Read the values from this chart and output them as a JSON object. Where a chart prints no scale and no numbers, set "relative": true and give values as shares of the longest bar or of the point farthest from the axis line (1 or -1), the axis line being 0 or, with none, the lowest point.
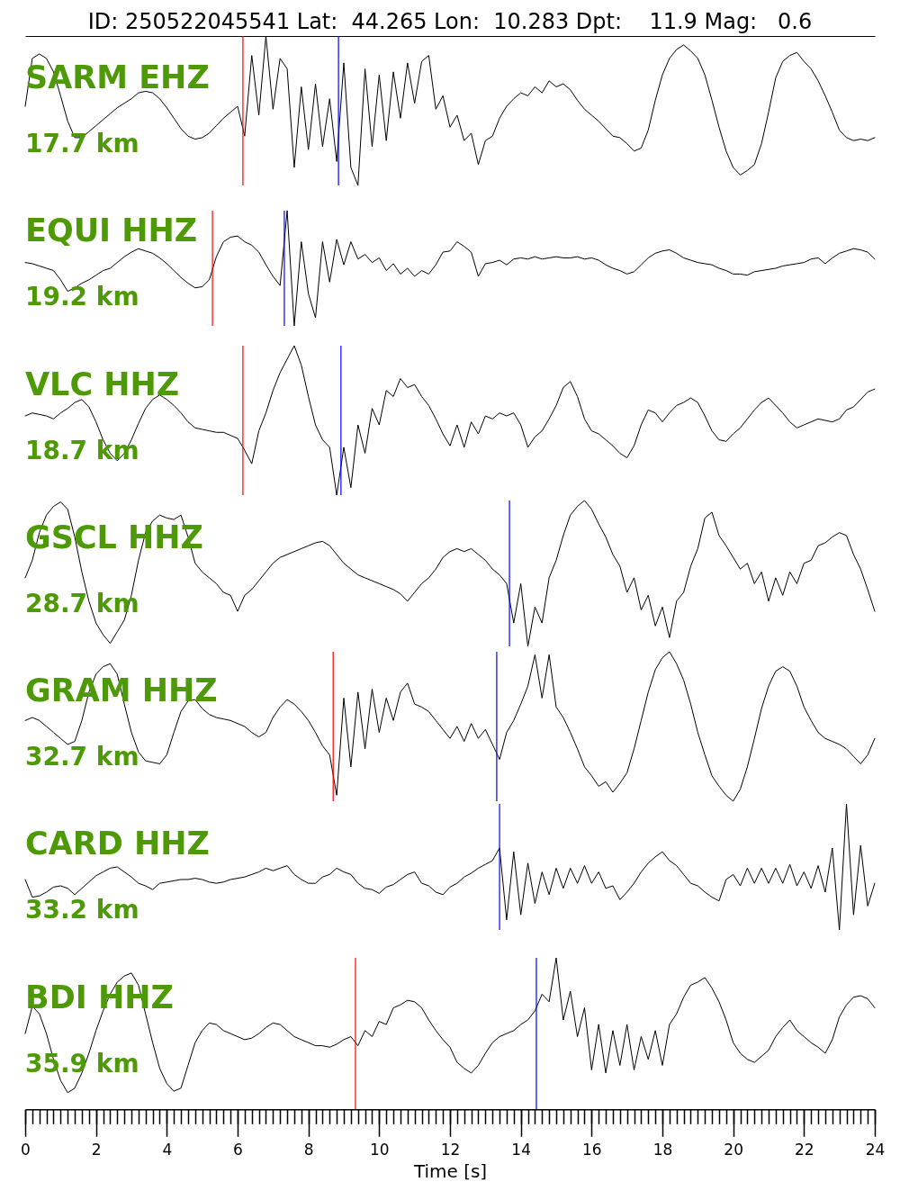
{
  "chart_data": [
    {
      "type": "line",
      "title": "ID: 250522045541 Lat:  44.265 Lon:  10.283 Dpt:    11.9 Mag:   0.6",
      "relative": true,
      "xlim": [
        0,
        24
      ],
      "tick_labels": false,
      "annotations": [
        "SARM EHZ",
        "17.7 km"
      ],
      "ref_lines": [
        {
          "axis": "x",
          "value": 6.15,
          "color": "#ff0000"
        },
        {
          "axis": "x",
          "value": 8.85,
          "color": "#0000ff"
        }
      ],
      "x": [
        0,
        0.2,
        0.4,
        0.6,
        0.8,
        1,
        1.2,
        1.4,
        1.6,
        1.8,
        2,
        2.2,
        2.4,
        2.6,
        2.8,
        3,
        3.2,
        3.4,
        3.6,
        3.8,
        4,
        4.2,
        4.4,
        4.6,
        4.8,
        5,
        5.2,
        5.4,
        5.6,
        5.8,
        6,
        6.2,
        6.4,
        6.6,
        6.8,
        7,
        7.2,
        7.4,
        7.6,
        7.8,
        8,
        8.2,
        8.4,
        8.6,
        8.8,
        9,
        9.2,
        9.4,
        9.6,
        9.8,
        10,
        10.2,
        10.4,
        10.6,
        10.8,
        11,
        11.2,
        11.4,
        11.6,
        11.8,
        12,
        12.2,
        12.4,
        12.6,
        12.8,
        13,
        13.2,
        13.4,
        13.6,
        13.8,
        14,
        14.2,
        14.4,
        14.6,
        14.8,
        15,
        15.2,
        15.4,
        15.6,
        15.8,
        16,
        16.2,
        16.4,
        16.6,
        16.8,
        17,
        17.2,
        17.4,
        17.6,
        17.8,
        18,
        18.2,
        18.4,
        18.6,
        18.8,
        19,
        19.2,
        19.4,
        19.6,
        19.8,
        20,
        20.2,
        20.4,
        20.6,
        20.8,
        21,
        21.2,
        21.4,
        21.6,
        21.8,
        22,
        22.2,
        22.4,
        22.6,
        22.8,
        23,
        23.2,
        23.4,
        23.6,
        23.8,
        24
      ],
      "series": [
        {
          "color": "#000000",
          "values": [
            0.53,
            0.85,
            0.88,
            0.85,
            0.76,
            0.6,
            0.43,
            0.32,
            0.32,
            0.36,
            0.4,
            0.44,
            0.48,
            0.52,
            0.55,
            0.58,
            0.62,
            0.63,
            0.62,
            0.58,
            0.52,
            0.45,
            0.38,
            0.33,
            0.31,
            0.32,
            0.35,
            0.4,
            0.45,
            0.49,
            0.53,
            0.33,
            0.87,
            0.47,
            1,
            0.51,
            0.85,
            0.78,
            0.12,
            0.66,
            0.24,
            0.68,
            0.26,
            0.58,
            0.16,
            0.82,
            0.12,
            0,
            0.78,
            0.26,
            0.74,
            0.3,
            0.76,
            0.45,
            0.82,
            0.55,
            0.83,
            0.87,
            0.51,
            0.6,
            0.39,
            0.47,
            0.3,
            0.35,
            0.14,
            0.3,
            0.33,
            0.45,
            0.53,
            0.58,
            0.62,
            0.6,
            0.66,
            0.62,
            0.7,
            0.66,
            0.68,
            0.64,
            0.57,
            0.51,
            0.47,
            0.43,
            0.38,
            0.33,
            0.32,
            0.28,
            0.23,
            0.25,
            0.37,
            0.57,
            0.74,
            0.85,
            0.91,
            0.94,
            0.9,
            0.85,
            0.74,
            0.57,
            0.39,
            0.23,
            0.12,
            0.07,
            0.1,
            0.14,
            0.28,
            0.49,
            0.72,
            0.83,
            0.87,
            0.89,
            0.83,
            0.78,
            0.7,
            0.6,
            0.49,
            0.37,
            0.32,
            0.3,
            0.31,
            0.3,
            0.32
          ]
        }
      ]
    },
    {
      "type": "line",
      "relative": true,
      "xlim": [
        0,
        24
      ],
      "tick_labels": false,
      "annotations": [
        "EQUI HHZ",
        "19.2 km"
      ],
      "ref_lines": [
        {
          "axis": "x",
          "value": 5.29,
          "color": "#ff0000"
        },
        {
          "axis": "x",
          "value": 7.32,
          "color": "#0000ff"
        }
      ],
      "x": [
        0,
        0.2,
        0.4,
        0.6,
        0.8,
        1,
        1.2,
        1.4,
        1.6,
        1.8,
        2,
        2.2,
        2.4,
        2.6,
        2.8,
        3,
        3.2,
        3.4,
        3.6,
        3.8,
        4,
        4.2,
        4.4,
        4.6,
        4.8,
        5,
        5.2,
        5.4,
        5.6,
        5.8,
        6,
        6.2,
        6.4,
        6.6,
        6.8,
        7,
        7.2,
        7.4,
        7.6,
        7.8,
        8,
        8.2,
        8.4,
        8.6,
        8.8,
        9,
        9.2,
        9.4,
        9.6,
        9.8,
        10,
        10.2,
        10.4,
        10.6,
        10.8,
        11,
        11.2,
        11.4,
        11.6,
        11.8,
        12,
        12.2,
        12.4,
        12.6,
        12.8,
        13,
        13.2,
        13.4,
        13.6,
        13.8,
        14,
        14.2,
        14.4,
        14.6,
        14.8,
        15,
        15.2,
        15.4,
        15.6,
        15.8,
        16,
        16.2,
        16.4,
        16.6,
        16.8,
        17,
        17.2,
        17.4,
        17.6,
        17.8,
        18,
        18.2,
        18.4,
        18.6,
        18.8,
        19,
        19.2,
        19.4,
        19.6,
        19.8,
        20,
        20.2,
        20.4,
        20.6,
        20.8,
        21,
        21.2,
        21.4,
        21.6,
        21.8,
        22,
        22.2,
        22.4,
        22.6,
        22.8,
        23,
        23.2,
        23.4,
        23.6,
        23.8,
        24
      ],
      "series": [
        {
          "color": "#000000",
          "values": [
            0.55,
            0.54,
            0.52,
            0.5,
            0.48,
            0.4,
            0.3,
            0.33,
            0.37,
            0.4,
            0.44,
            0.48,
            0.5,
            0.55,
            0.6,
            0.64,
            0.67,
            0.65,
            0.63,
            0.59,
            0.54,
            0.48,
            0.42,
            0.37,
            0.33,
            0.34,
            0.4,
            0.6,
            0.73,
            0.77,
            0.78,
            0.73,
            0.7,
            0.64,
            0.53,
            0.43,
            0.35,
            1,
            0,
            0.73,
            0.28,
            0.07,
            0.73,
            0.38,
            0.75,
            0.53,
            0.73,
            0.58,
            0.62,
            0.55,
            0.59,
            0.48,
            0.54,
            0.45,
            0.5,
            0.43,
            0.48,
            0.45,
            0.53,
            0.64,
            0.65,
            0.73,
            0.69,
            0.64,
            0.43,
            0.54,
            0.55,
            0.57,
            0.53,
            0.58,
            0.59,
            0.58,
            0.6,
            0.58,
            0.59,
            0.6,
            0.59,
            0.59,
            0.6,
            0.58,
            0.59,
            0.57,
            0.53,
            0.5,
            0.48,
            0.45,
            0.47,
            0.53,
            0.59,
            0.63,
            0.65,
            0.66,
            0.63,
            0.59,
            0.57,
            0.55,
            0.54,
            0.53,
            0.5,
            0.48,
            0.45,
            0.45,
            0.44,
            0.47,
            0.48,
            0.49,
            0.5,
            0.52,
            0.53,
            0.54,
            0.55,
            0.58,
            0.59,
            0.54,
            0.59,
            0.63,
            0.65,
            0.67,
            0.66,
            0.64,
            0.58
          ]
        }
      ]
    },
    {
      "type": "line",
      "relative": true,
      "xlim": [
        0,
        24
      ],
      "tick_labels": false,
      "annotations": [
        "VLC HHZ",
        "18.7 km"
      ],
      "ref_lines": [
        {
          "axis": "x",
          "value": 6.15,
          "color": "#ff0000"
        },
        {
          "axis": "x",
          "value": 8.92,
          "color": "#0000ff"
        }
      ],
      "x": [
        0,
        0.2,
        0.4,
        0.6,
        0.8,
        1,
        1.2,
        1.4,
        1.6,
        1.8,
        2,
        2.2,
        2.4,
        2.6,
        2.8,
        3,
        3.2,
        3.4,
        3.6,
        3.8,
        4,
        4.2,
        4.4,
        4.6,
        4.8,
        5,
        5.2,
        5.4,
        5.6,
        5.8,
        6,
        6.2,
        6.4,
        6.6,
        6.8,
        7,
        7.2,
        7.4,
        7.6,
        7.8,
        8,
        8.2,
        8.4,
        8.6,
        8.8,
        9,
        9.2,
        9.4,
        9.6,
        9.8,
        10,
        10.2,
        10.4,
        10.6,
        10.8,
        11,
        11.2,
        11.4,
        11.6,
        11.8,
        12,
        12.2,
        12.4,
        12.6,
        12.8,
        13,
        13.2,
        13.4,
        13.6,
        13.8,
        14,
        14.2,
        14.4,
        14.6,
        14.8,
        15,
        15.2,
        15.4,
        15.6,
        15.8,
        16,
        16.2,
        16.4,
        16.6,
        16.8,
        17,
        17.2,
        17.4,
        17.6,
        17.8,
        18,
        18.2,
        18.4,
        18.6,
        18.8,
        19,
        19.2,
        19.4,
        19.6,
        19.8,
        20,
        20.2,
        20.4,
        20.6,
        20.8,
        21,
        21.2,
        21.4,
        21.6,
        21.8,
        22,
        22.2,
        22.4,
        22.6,
        22.8,
        23,
        23.2,
        23.4,
        23.6,
        23.8,
        24
      ],
      "series": [
        {
          "color": "#000000",
          "values": [
            0.53,
            0.55,
            0.54,
            0.53,
            0.51,
            0.55,
            0.58,
            0.62,
            0.64,
            0.59,
            0.49,
            0.37,
            0.28,
            0.23,
            0.28,
            0.37,
            0.48,
            0.58,
            0.64,
            0.67,
            0.64,
            0.6,
            0.55,
            0.49,
            0.45,
            0.44,
            0.43,
            0.42,
            0.42,
            0.4,
            0.38,
            0.3,
            0.21,
            0.43,
            0.55,
            0.7,
            0.82,
            0.91,
            1,
            0.87,
            0.66,
            0.47,
            0.37,
            0.32,
            0,
            0.32,
            0.05,
            0.47,
            0.28,
            0.58,
            0.47,
            0.7,
            0.66,
            0.78,
            0.72,
            0.74,
            0.66,
            0.6,
            0.51,
            0.41,
            0.33,
            0.47,
            0.32,
            0.49,
            0.41,
            0.53,
            0.51,
            0.55,
            0.53,
            0.55,
            0.47,
            0.32,
            0.39,
            0.43,
            0.51,
            0.6,
            0.72,
            0.76,
            0.66,
            0.51,
            0.43,
            0.41,
            0.37,
            0.33,
            0.28,
            0.25,
            0.33,
            0.47,
            0.57,
            0.55,
            0.49,
            0.55,
            0.6,
            0.62,
            0.65,
            0.62,
            0.53,
            0.43,
            0.37,
            0.36,
            0.41,
            0.45,
            0.51,
            0.57,
            0.62,
            0.65,
            0.6,
            0.55,
            0.49,
            0.45,
            0.47,
            0.49,
            0.51,
            0.5,
            0.49,
            0.51,
            0.57,
            0.59,
            0.64,
            0.69,
            0.71
          ]
        }
      ]
    },
    {
      "type": "line",
      "relative": true,
      "xlim": [
        0,
        24
      ],
      "tick_labels": false,
      "annotations": [
        "GSCL HHZ",
        "28.7 km"
      ],
      "ref_lines": [
        {
          "axis": "x",
          "value": 13.68,
          "color": "#0000ff"
        }
      ],
      "x": [
        0,
        0.2,
        0.4,
        0.6,
        0.8,
        1,
        1.2,
        1.4,
        1.6,
        1.8,
        2,
        2.2,
        2.4,
        2.6,
        2.8,
        3,
        3.2,
        3.4,
        3.6,
        3.8,
        4,
        4.2,
        4.4,
        4.6,
        4.8,
        5,
        5.2,
        5.4,
        5.6,
        5.8,
        6,
        6.2,
        6.4,
        6.6,
        6.8,
        7,
        7.2,
        7.4,
        7.6,
        7.8,
        8,
        8.2,
        8.4,
        8.6,
        8.8,
        9,
        9.2,
        9.4,
        9.6,
        9.8,
        10,
        10.2,
        10.4,
        10.6,
        10.8,
        11,
        11.2,
        11.4,
        11.6,
        11.8,
        12,
        12.2,
        12.4,
        12.6,
        12.8,
        13,
        13.2,
        13.4,
        13.6,
        13.8,
        14,
        14.2,
        14.4,
        14.6,
        14.8,
        15,
        15.2,
        15.4,
        15.6,
        15.8,
        16,
        16.2,
        16.4,
        16.6,
        16.8,
        17,
        17.2,
        17.4,
        17.6,
        17.8,
        18,
        18.2,
        18.4,
        18.6,
        18.8,
        19,
        19.2,
        19.4,
        19.6,
        19.8,
        20,
        20.2,
        20.4,
        20.6,
        20.8,
        21,
        21.2,
        21.4,
        21.6,
        21.8,
        22,
        22.2,
        22.4,
        22.6,
        22.8,
        23,
        23.2,
        23.4,
        23.6,
        23.8,
        24
      ],
      "series": [
        {
          "color": "#000000",
          "values": [
            0.47,
            0.59,
            0.78,
            0.9,
            0.96,
            0.99,
            0.94,
            0.75,
            0.51,
            0.31,
            0.16,
            0.08,
            0.02,
            0.1,
            0.18,
            0.35,
            0.59,
            0.78,
            0.86,
            0.9,
            0.88,
            0.87,
            0.9,
            0.75,
            0.57,
            0.51,
            0.47,
            0.43,
            0.37,
            0.35,
            0.24,
            0.35,
            0.39,
            0.45,
            0.51,
            0.57,
            0.61,
            0.63,
            0.65,
            0.67,
            0.69,
            0.71,
            0.72,
            0.69,
            0.63,
            0.57,
            0.53,
            0.49,
            0.47,
            0.45,
            0.43,
            0.41,
            0.39,
            0.36,
            0.31,
            0.37,
            0.43,
            0.47,
            0.53,
            0.61,
            0.65,
            0.67,
            0.65,
            0.67,
            0.63,
            0.59,
            0.53,
            0.49,
            0.43,
            0.16,
            0.43,
            0,
            0.27,
            0.16,
            0.47,
            0.59,
            0.76,
            0.9,
            0.96,
            1,
            0.94,
            0.84,
            0.75,
            0.63,
            0.55,
            0.37,
            0.47,
            0.25,
            0.35,
            0.14,
            0.27,
            0.06,
            0.31,
            0.37,
            0.55,
            0.67,
            0.88,
            0.92,
            0.76,
            0.69,
            0.61,
            0.53,
            0.57,
            0.43,
            0.51,
            0.31,
            0.47,
            0.35,
            0.51,
            0.43,
            0.57,
            0.59,
            0.69,
            0.71,
            0.75,
            0.78,
            0.76,
            0.63,
            0.53,
            0.39,
            0.24
          ]
        }
      ]
    },
    {
      "type": "line",
      "relative": true,
      "xlim": [
        0,
        24
      ],
      "tick_labels": false,
      "annotations": [
        "GRAM HHZ",
        "32.7 km"
      ],
      "ref_lines": [
        {
          "axis": "x",
          "value": 8.7,
          "color": "#ff0000"
        },
        {
          "axis": "x",
          "value": 13.32,
          "color": "#0000ff"
        }
      ],
      "x": [
        0,
        0.2,
        0.4,
        0.6,
        0.8,
        1,
        1.2,
        1.4,
        1.6,
        1.8,
        2,
        2.2,
        2.4,
        2.6,
        2.8,
        3,
        3.2,
        3.4,
        3.6,
        3.8,
        4,
        4.2,
        4.4,
        4.6,
        4.8,
        5,
        5.2,
        5.4,
        5.6,
        5.8,
        6,
        6.2,
        6.4,
        6.6,
        6.8,
        7,
        7.2,
        7.4,
        7.6,
        7.8,
        8,
        8.2,
        8.4,
        8.6,
        8.8,
        9,
        9.2,
        9.4,
        9.6,
        9.8,
        10,
        10.2,
        10.4,
        10.6,
        10.8,
        11,
        11.2,
        11.4,
        11.6,
        11.8,
        12,
        12.2,
        12.4,
        12.6,
        12.8,
        13,
        13.2,
        13.4,
        13.6,
        13.8,
        14,
        14.2,
        14.4,
        14.6,
        14.8,
        15,
        15.2,
        15.4,
        15.6,
        15.8,
        16,
        16.2,
        16.4,
        16.6,
        16.8,
        17,
        17.2,
        17.4,
        17.6,
        17.8,
        18,
        18.2,
        18.4,
        18.6,
        18.8,
        19,
        19.2,
        19.4,
        19.6,
        19.8,
        20,
        20.2,
        20.4,
        20.6,
        20.8,
        21,
        21.2,
        21.4,
        21.6,
        21.8,
        22,
        22.2,
        22.4,
        22.6,
        22.8,
        23,
        23.2,
        23.4,
        23.6,
        23.8,
        24
      ],
      "series": [
        {
          "color": "#000000",
          "values": [
            0.54,
            0.56,
            0.54,
            0.5,
            0.46,
            0.42,
            0.38,
            0.4,
            0.54,
            0.73,
            0.85,
            0.9,
            0.92,
            0.85,
            0.65,
            0.46,
            0.33,
            0.27,
            0.26,
            0.25,
            0.31,
            0.46,
            0.6,
            0.67,
            0.68,
            0.62,
            0.58,
            0.56,
            0.55,
            0.54,
            0.52,
            0.5,
            0.46,
            0.43,
            0.46,
            0.56,
            0.63,
            0.68,
            0.65,
            0.6,
            0.54,
            0.46,
            0.37,
            0.31,
            0.04,
            0.69,
            0.23,
            0.73,
            0.35,
            0.75,
            0.46,
            0.69,
            0.54,
            0.73,
            0.79,
            0.65,
            0.63,
            0.6,
            0.54,
            0.48,
            0.42,
            0.5,
            0.4,
            0.52,
            0.42,
            0.48,
            0.38,
            0.28,
            0.46,
            0.54,
            0.65,
            0.77,
            0.98,
            0.69,
            0.98,
            0.63,
            0.56,
            0.46,
            0.35,
            0.23,
            0.17,
            0.1,
            0.13,
            0.06,
            0.12,
            0.19,
            0.35,
            0.54,
            0.73,
            0.88,
            0.96,
            1,
            0.92,
            0.81,
            0.65,
            0.46,
            0.31,
            0.17,
            0.1,
            0.04,
            0,
            0.08,
            0.23,
            0.42,
            0.62,
            0.77,
            0.87,
            0.9,
            0.87,
            0.77,
            0.63,
            0.54,
            0.46,
            0.42,
            0.4,
            0.38,
            0.35,
            0.3,
            0.25,
            0.31,
            0.42
          ]
        }
      ]
    },
    {
      "type": "line",
      "relative": true,
      "xlim": [
        0,
        24
      ],
      "tick_labels": false,
      "annotations": [
        "CARD HHZ",
        "33.2 km"
      ],
      "ref_lines": [
        {
          "axis": "x",
          "value": 13.4,
          "color": "#0000ff"
        }
      ],
      "x": [
        0,
        0.2,
        0.4,
        0.6,
        0.8,
        1,
        1.2,
        1.4,
        1.6,
        1.8,
        2,
        2.2,
        2.4,
        2.6,
        2.8,
        3,
        3.2,
        3.4,
        3.6,
        3.8,
        4,
        4.2,
        4.4,
        4.6,
        4.8,
        5,
        5.2,
        5.4,
        5.6,
        5.8,
        6,
        6.2,
        6.4,
        6.6,
        6.8,
        7,
        7.2,
        7.4,
        7.6,
        7.8,
        8,
        8.2,
        8.4,
        8.6,
        8.8,
        9,
        9.2,
        9.4,
        9.6,
        9.8,
        10,
        10.2,
        10.4,
        10.6,
        10.8,
        11,
        11.2,
        11.4,
        11.6,
        11.8,
        12,
        12.2,
        12.4,
        12.6,
        12.8,
        13,
        13.2,
        13.4,
        13.6,
        13.8,
        14,
        14.2,
        14.4,
        14.6,
        14.8,
        15,
        15.2,
        15.4,
        15.6,
        15.8,
        16,
        16.2,
        16.4,
        16.6,
        16.8,
        17,
        17.2,
        17.4,
        17.6,
        17.8,
        18,
        18.2,
        18.4,
        18.6,
        18.8,
        19,
        19.2,
        19.4,
        19.6,
        19.8,
        20,
        20.2,
        20.4,
        20.6,
        20.8,
        21,
        21.2,
        21.4,
        21.6,
        21.8,
        22,
        22.2,
        22.4,
        22.6,
        22.8,
        23,
        23.2,
        23.4,
        23.6,
        23.8,
        24
      ],
      "series": [
        {
          "color": "#000000",
          "values": [
            0.4,
            0.26,
            0.27,
            0.3,
            0.34,
            0.35,
            0.33,
            0.28,
            0.33,
            0.38,
            0.43,
            0.46,
            0.49,
            0.5,
            0.46,
            0.42,
            0.37,
            0.35,
            0.32,
            0.37,
            0.38,
            0.39,
            0.4,
            0.4,
            0.41,
            0.4,
            0.38,
            0.37,
            0.38,
            0.4,
            0.41,
            0.42,
            0.44,
            0.46,
            0.49,
            0.47,
            0.49,
            0.51,
            0.44,
            0.4,
            0.37,
            0.37,
            0.42,
            0.44,
            0.49,
            0.46,
            0.44,
            0.37,
            0.33,
            0.32,
            0.29,
            0.34,
            0.36,
            0.4,
            0.44,
            0.46,
            0.37,
            0.35,
            0.3,
            0.28,
            0.34,
            0.37,
            0.42,
            0.45,
            0.49,
            0.52,
            0.55,
            0.65,
            0.08,
            0.62,
            0.12,
            0.53,
            0.21,
            0.46,
            0.28,
            0.49,
            0.33,
            0.49,
            0.37,
            0.51,
            0.37,
            0.46,
            0.33,
            0.35,
            0.24,
            0.3,
            0.37,
            0.46,
            0.53,
            0.58,
            0.62,
            0.55,
            0.51,
            0.44,
            0.37,
            0.35,
            0.3,
            0.26,
            0.23,
            0.4,
            0.44,
            0.35,
            0.49,
            0.37,
            0.49,
            0.37,
            0.49,
            0.37,
            0.52,
            0.35,
            0.46,
            0.33,
            0.51,
            0.3,
            0.65,
            0,
            1,
            0.12,
            0.67,
            0.19,
            0.37
          ]
        }
      ]
    },
    {
      "type": "line",
      "relative": true,
      "xlim": [
        0,
        24
      ],
      "tick_labels": "x",
      "xlabel": "Time [s]",
      "annotations": [
        "BDI HHZ",
        "35.9 km"
      ],
      "ref_lines": [
        {
          "axis": "x",
          "value": 9.33,
          "color": "#ff0000"
        },
        {
          "axis": "x",
          "value": 14.44,
          "color": "#0000ff"
        }
      ],
      "xticks": [
        0,
        {
          "value": 0.2,
          "label": null
        },
        {
          "value": 0.4,
          "label": null
        },
        {
          "value": 0.6,
          "label": null
        },
        {
          "value": 0.8,
          "label": null
        },
        {
          "value": 1,
          "label": null
        },
        {
          "value": 1.2,
          "label": null
        },
        {
          "value": 1.4,
          "label": null
        },
        {
          "value": 1.6,
          "label": null
        },
        {
          "value": 1.8,
          "label": null
        },
        2,
        {
          "value": 2.2,
          "label": null
        },
        {
          "value": 2.4,
          "label": null
        },
        {
          "value": 2.6,
          "label": null
        },
        {
          "value": 2.8,
          "label": null
        },
        {
          "value": 3,
          "label": null
        },
        {
          "value": 3.2,
          "label": null
        },
        {
          "value": 3.4,
          "label": null
        },
        {
          "value": 3.6,
          "label": null
        },
        {
          "value": 3.8,
          "label": null
        },
        4,
        {
          "value": 4.2,
          "label": null
        },
        {
          "value": 4.4,
          "label": null
        },
        {
          "value": 4.6,
          "label": null
        },
        {
          "value": 4.8,
          "label": null
        },
        {
          "value": 5,
          "label": null
        },
        {
          "value": 5.2,
          "label": null
        },
        {
          "value": 5.4,
          "label": null
        },
        {
          "value": 5.6,
          "label": null
        },
        {
          "value": 5.8,
          "label": null
        },
        6,
        {
          "value": 6.2,
          "label": null
        },
        {
          "value": 6.4,
          "label": null
        },
        {
          "value": 6.6,
          "label": null
        },
        {
          "value": 6.8,
          "label": null
        },
        {
          "value": 7,
          "label": null
        },
        {
          "value": 7.2,
          "label": null
        },
        {
          "value": 7.4,
          "label": null
        },
        {
          "value": 7.6,
          "label": null
        },
        {
          "value": 7.8,
          "label": null
        },
        8,
        {
          "value": 8.2,
          "label": null
        },
        {
          "value": 8.4,
          "label": null
        },
        {
          "value": 8.6,
          "label": null
        },
        {
          "value": 8.8,
          "label": null
        },
        {
          "value": 9,
          "label": null
        },
        {
          "value": 9.2,
          "label": null
        },
        {
          "value": 9.4,
          "label": null
        },
        {
          "value": 9.6,
          "label": null
        },
        {
          "value": 9.8,
          "label": null
        },
        10,
        {
          "value": 10.2,
          "label": null
        },
        {
          "value": 10.4,
          "label": null
        },
        {
          "value": 10.6,
          "label": null
        },
        {
          "value": 10.8,
          "label": null
        },
        {
          "value": 11,
          "label": null
        },
        {
          "value": 11.2,
          "label": null
        },
        {
          "value": 11.4,
          "label": null
        },
        {
          "value": 11.6,
          "label": null
        },
        {
          "value": 11.8,
          "label": null
        },
        12,
        {
          "value": 12.2,
          "label": null
        },
        {
          "value": 12.4,
          "label": null
        },
        {
          "value": 12.6,
          "label": null
        },
        {
          "value": 12.8,
          "label": null
        },
        {
          "value": 13,
          "label": null
        },
        {
          "value": 13.2,
          "label": null
        },
        {
          "value": 13.4,
          "label": null
        },
        {
          "value": 13.6,
          "label": null
        },
        {
          "value": 13.8,
          "label": null
        },
        14,
        {
          "value": 14.2,
          "label": null
        },
        {
          "value": 14.4,
          "label": null
        },
        {
          "value": 14.6,
          "label": null
        },
        {
          "value": 14.8,
          "label": null
        },
        {
          "value": 15,
          "label": null
        },
        {
          "value": 15.2,
          "label": null
        },
        {
          "value": 15.4,
          "label": null
        },
        {
          "value": 15.6,
          "label": null
        },
        {
          "value": 15.8,
          "label": null
        },
        16,
        {
          "value": 16.2,
          "label": null
        },
        {
          "value": 16.4,
          "label": null
        },
        {
          "value": 16.6,
          "label": null
        },
        {
          "value": 16.8,
          "label": null
        },
        {
          "value": 17,
          "label": null
        },
        {
          "value": 17.2,
          "label": null
        },
        {
          "value": 17.4,
          "label": null
        },
        {
          "value": 17.6,
          "label": null
        },
        {
          "value": 17.8,
          "label": null
        },
        18,
        {
          "value": 18.2,
          "label": null
        },
        {
          "value": 18.4,
          "label": null
        },
        {
          "value": 18.6,
          "label": null
        },
        {
          "value": 18.8,
          "label": null
        },
        {
          "value": 19,
          "label": null
        },
        {
          "value": 19.2,
          "label": null
        },
        {
          "value": 19.4,
          "label": null
        },
        {
          "value": 19.6,
          "label": null
        },
        {
          "value": 19.8,
          "label": null
        },
        20,
        {
          "value": 20.2,
          "label": null
        },
        {
          "value": 20.4,
          "label": null
        },
        {
          "value": 20.6,
          "label": null
        },
        {
          "value": 20.8,
          "label": null
        },
        {
          "value": 21,
          "label": null
        },
        {
          "value": 21.2,
          "label": null
        },
        {
          "value": 21.4,
          "label": null
        },
        {
          "value": 21.6,
          "label": null
        },
        {
          "value": 21.8,
          "label": null
        },
        22,
        {
          "value": 22.2,
          "label": null
        },
        {
          "value": 22.4,
          "label": null
        },
        {
          "value": 22.6,
          "label": null
        },
        {
          "value": 22.8,
          "label": null
        },
        {
          "value": 23,
          "label": null
        },
        {
          "value": 23.2,
          "label": null
        },
        {
          "value": 23.4,
          "label": null
        },
        {
          "value": 23.6,
          "label": null
        },
        {
          "value": 23.8,
          "label": null
        },
        24
      ],
      "x": [
        0,
        0.2,
        0.4,
        0.6,
        0.8,
        1,
        1.2,
        1.4,
        1.6,
        1.8,
        2,
        2.2,
        2.4,
        2.6,
        2.8,
        3,
        3.2,
        3.4,
        3.6,
        3.8,
        4,
        4.2,
        4.4,
        4.6,
        4.8,
        5,
        5.2,
        5.4,
        5.6,
        5.8,
        6,
        6.2,
        6.4,
        6.6,
        6.8,
        7,
        7.2,
        7.4,
        7.6,
        7.8,
        8,
        8.2,
        8.4,
        8.6,
        8.8,
        9,
        9.2,
        9.4,
        9.6,
        9.8,
        10,
        10.2,
        10.4,
        10.6,
        10.8,
        11,
        11.2,
        11.4,
        11.6,
        11.8,
        12,
        12.2,
        12.4,
        12.6,
        12.8,
        13,
        13.2,
        13.4,
        13.6,
        13.8,
        14,
        14.2,
        14.4,
        14.6,
        14.8,
        15,
        15.2,
        15.4,
        15.6,
        15.8,
        16,
        16.2,
        16.4,
        16.6,
        16.8,
        17,
        17.2,
        17.4,
        17.6,
        17.8,
        18,
        18.2,
        18.4,
        18.6,
        18.8,
        19,
        19.2,
        19.4,
        19.6,
        19.8,
        20,
        20.2,
        20.4,
        20.6,
        20.8,
        21,
        21.2,
        21.4,
        21.6,
        21.8,
        22,
        22.2,
        22.4,
        22.6,
        22.8,
        23,
        23.2,
        23.4,
        23.6,
        23.8,
        24
      ],
      "series": [
        {
          "color": "#000000",
          "values": [
            0.5,
            0.68,
            0.63,
            0.5,
            0.33,
            0.19,
            0.11,
            0.14,
            0.24,
            0.37,
            0.52,
            0.65,
            0.76,
            0.84,
            0.88,
            0.9,
            0.82,
            0.63,
            0.44,
            0.27,
            0.17,
            0.12,
            0.14,
            0.29,
            0.44,
            0.52,
            0.57,
            0.56,
            0.52,
            0.5,
            0.48,
            0.46,
            0.47,
            0.5,
            0.54,
            0.57,
            0.56,
            0.52,
            0.48,
            0.46,
            0.44,
            0.42,
            0.42,
            0.41,
            0.43,
            0.46,
            0.48,
            0.42,
            0.52,
            0.48,
            0.58,
            0.56,
            0.67,
            0.69,
            0.72,
            0.71,
            0.67,
            0.59,
            0.52,
            0.46,
            0.41,
            0.31,
            0.27,
            0.24,
            0.29,
            0.37,
            0.44,
            0.48,
            0.5,
            0.52,
            0.56,
            0.59,
            0.65,
            0.76,
            0.71,
            1,
            0.59,
            0.78,
            0.48,
            0.67,
            0.26,
            0.56,
            0.24,
            0.52,
            0.29,
            0.56,
            0.26,
            0.48,
            0.33,
            0.52,
            0.29,
            0.56,
            0.63,
            0.74,
            0.82,
            0.84,
            0.87,
            0.8,
            0.71,
            0.59,
            0.44,
            0.37,
            0.33,
            0.31,
            0.35,
            0.39,
            0.48,
            0.54,
            0.59,
            0.52,
            0.48,
            0.44,
            0.41,
            0.37,
            0.46,
            0.61,
            0.69,
            0.74,
            0.75,
            0.73,
            0.67
          ]
        }
      ]
    }
  ]
}
